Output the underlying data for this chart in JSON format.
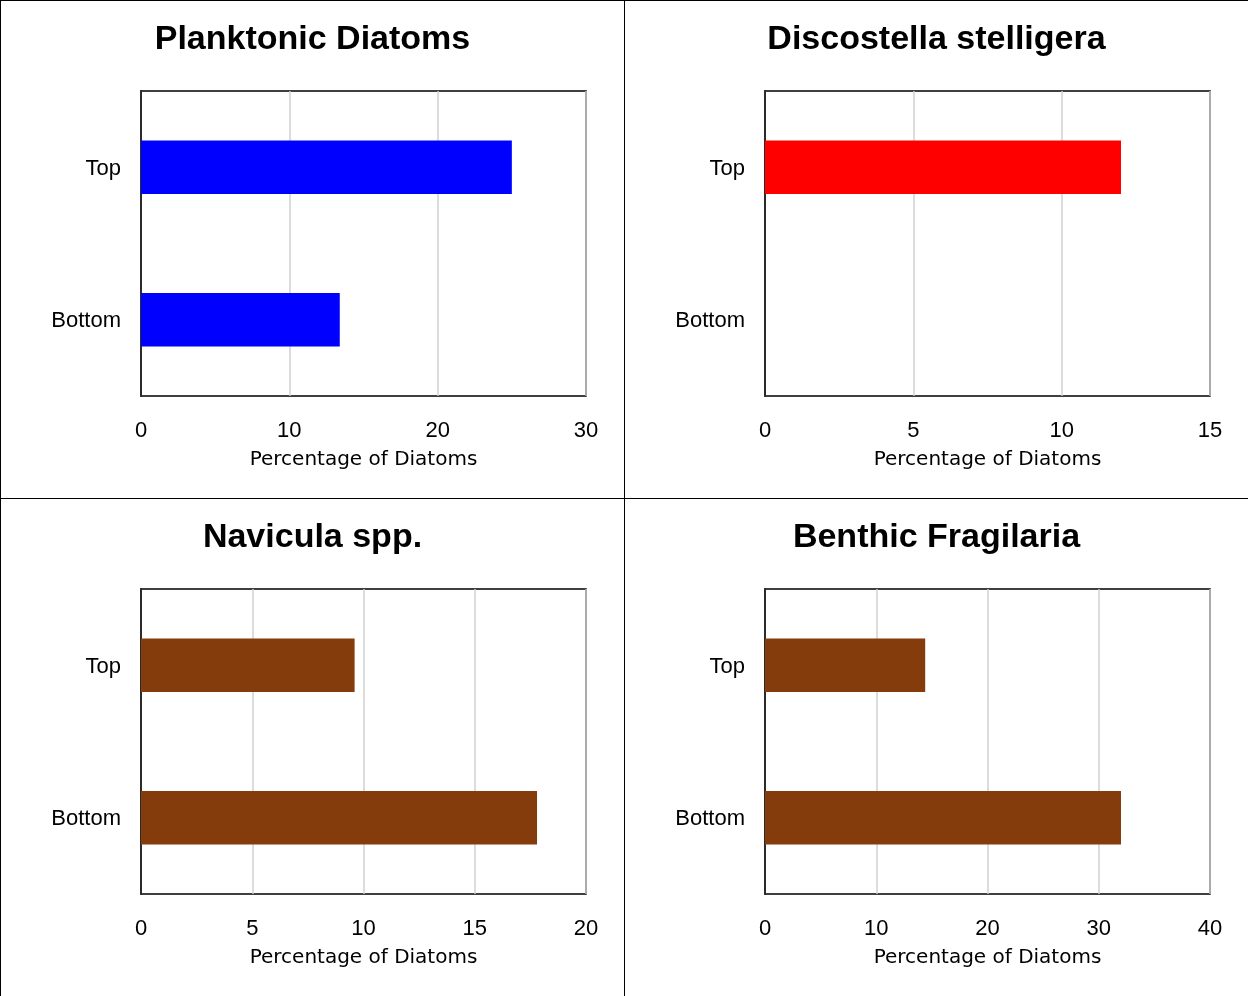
{
  "chart_data": [
    {
      "type": "bar",
      "orientation": "horizontal",
      "title": "Planktonic Diatoms",
      "xlabel": "Percentage of Diatoms",
      "categories": [
        "Top",
        "Bottom"
      ],
      "values": [
        25,
        13.4
      ],
      "color": "#0000ff",
      "xlim": [
        0,
        30
      ],
      "xticks": [
        0,
        10,
        20,
        30
      ],
      "grid": "x"
    },
    {
      "type": "bar",
      "orientation": "horizontal",
      "title": "Discostella stelligera",
      "xlabel": "Percentage of Diatoms",
      "categories": [
        "Top",
        "Bottom"
      ],
      "values": [
        12,
        0
      ],
      "color": "#ff0000",
      "xlim": [
        0,
        15
      ],
      "xticks": [
        0,
        5,
        10,
        15
      ],
      "grid": "x"
    },
    {
      "type": "bar",
      "orientation": "horizontal",
      "title": "Navicula spp.",
      "xlabel": "Percentage of Diatoms",
      "categories": [
        "Top",
        "Bottom"
      ],
      "values": [
        9.6,
        17.8
      ],
      "color": "#843c0c",
      "xlim": [
        0,
        20
      ],
      "xticks": [
        0,
        5,
        10,
        15,
        20
      ],
      "grid": "x"
    },
    {
      "type": "bar",
      "orientation": "horizontal",
      "title": "Benthic Fragilaria",
      "xlabel": "Percentage of Diatoms",
      "categories": [
        "Top",
        "Bottom"
      ],
      "values": [
        14.4,
        32
      ],
      "color": "#843c0c",
      "xlim": [
        0,
        40
      ],
      "xticks": [
        0,
        10,
        20,
        30,
        40
      ],
      "grid": "x"
    }
  ]
}
